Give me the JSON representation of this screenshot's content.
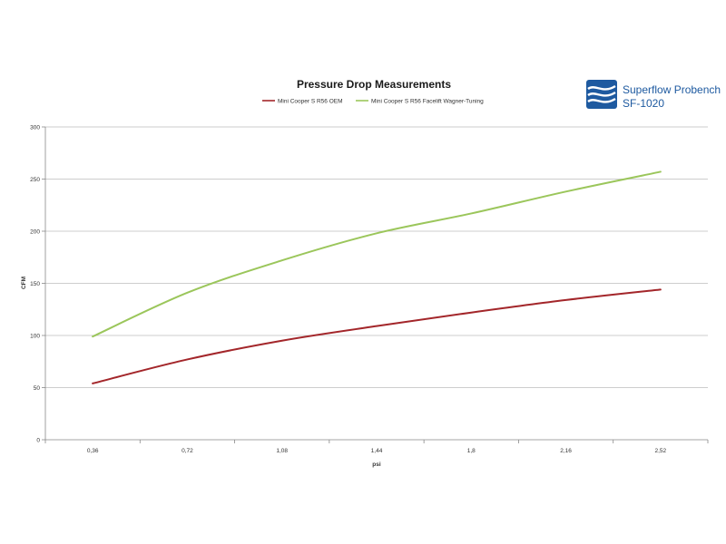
{
  "chart_data": {
    "type": "line",
    "title": "Pressure Drop Measurements",
    "xlabel": "psi",
    "ylabel": "CFM",
    "categories": [
      "0,36",
      "0,72",
      "1,08",
      "1,44",
      "1,8",
      "2,16",
      "2,52"
    ],
    "y_ticks": [
      "0",
      "50",
      "100",
      "150",
      "200",
      "250",
      "300"
    ],
    "ylim": [
      0,
      300
    ],
    "grid": true,
    "legend_position": "top",
    "series": [
      {
        "name": "Mini Cooper S R56 OEM",
        "color": "#a3262a",
        "values": [
          54,
          77,
          95,
          109,
          122,
          134,
          144
        ]
      },
      {
        "name": "Mini Cooper S R56 Facelift Wagner-Tuning",
        "color": "#9bc65b",
        "values": [
          99,
          141,
          172,
          198,
          217,
          238,
          257
        ]
      }
    ]
  },
  "logo": {
    "line1": "Superflow Probench",
    "line2": "SF-1020",
    "color": "#1e5aa0"
  }
}
